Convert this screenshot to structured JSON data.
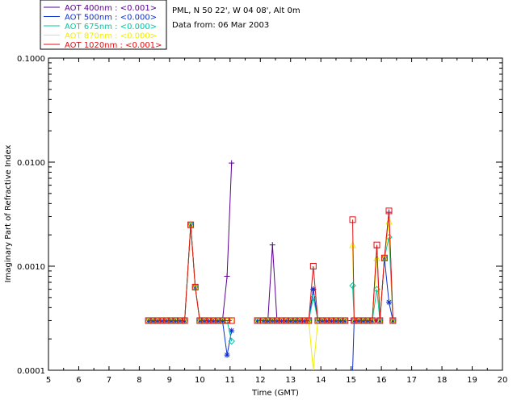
{
  "header": {
    "location": "PML, N 50 22', W 04 08', Alt 0m",
    "date_line": "Data from: 06 Mar 2003"
  },
  "chart_data": {
    "type": "line",
    "xlabel": "Time (GMT)",
    "ylabel": "Imaginary Part of Refractive Index",
    "xlim": [
      5,
      20
    ],
    "ylim": [
      0.0001,
      0.1
    ],
    "yscale": "log",
    "x_ticks": [
      5,
      6,
      7,
      8,
      9,
      10,
      11,
      12,
      13,
      14,
      15,
      16,
      17,
      18,
      19,
      20
    ],
    "x_tick_labels": [
      "5",
      "6",
      "7",
      "8",
      "9",
      "10",
      "11",
      "12",
      "13",
      "14",
      "15",
      "16",
      "17",
      "18",
      "19",
      "20"
    ],
    "y_ticks": [
      0.0001,
      0.001,
      0.01,
      0.1
    ],
    "y_tick_labels": [
      "0.0001",
      "0.0010",
      "0.0100",
      "0.1000"
    ],
    "grid": false,
    "legend_position": "top-left, outside plot",
    "series": [
      {
        "name": "AOT  400nm : <0.001>",
        "color": "#5a0090",
        "marker": "plus",
        "segments": [
          [
            [
              8.3,
              0.0003
            ],
            [
              8.45,
              0.0003
            ],
            [
              8.6,
              0.0003
            ],
            [
              8.75,
              0.0003
            ],
            [
              8.9,
              0.0003
            ],
            [
              9.05,
              0.0003
            ],
            [
              9.2,
              0.0003
            ],
            [
              9.35,
              0.0003
            ],
            [
              9.5,
              0.0003
            ],
            [
              9.7,
              0.0025
            ],
            [
              9.85,
              0.00063
            ],
            [
              10.0,
              0.0003
            ],
            [
              10.15,
              0.0003
            ],
            [
              10.3,
              0.0003
            ],
            [
              10.45,
              0.0003
            ],
            [
              10.6,
              0.0003
            ],
            [
              10.75,
              0.0003
            ],
            [
              10.9,
              0.0008
            ],
            [
              11.05,
              0.0098
            ]
          ],
          [
            [
              11.9,
              0.0003
            ],
            [
              12.1,
              0.0003
            ],
            [
              12.25,
              0.0003
            ],
            [
              12.4,
              0.0016
            ],
            [
              12.55,
              0.0003
            ],
            [
              12.7,
              0.0003
            ],
            [
              12.85,
              0.0003
            ],
            [
              13.0,
              0.0003
            ],
            [
              13.15,
              0.0003
            ],
            [
              13.3,
              0.0003
            ],
            [
              13.45,
              0.0003
            ],
            [
              13.6,
              0.0003
            ],
            [
              13.75,
              0.0006
            ],
            [
              13.9,
              0.0003
            ],
            [
              14.05,
              0.0003
            ],
            [
              14.2,
              0.0003
            ],
            [
              14.35,
              0.0003
            ],
            [
              14.5,
              0.0003
            ],
            [
              14.65,
              0.0003
            ],
            [
              14.8,
              0.0003
            ]
          ],
          [
            [
              15.0,
              0.0003
            ],
            [
              15.1,
              0.0003
            ],
            [
              15.25,
              0.0003
            ],
            [
              15.4,
              0.0003
            ],
            [
              15.55,
              0.0003
            ],
            [
              15.7,
              0.0003
            ],
            [
              15.85,
              0.0015
            ],
            [
              15.95,
              0.0003
            ],
            [
              16.1,
              0.0012
            ],
            [
              16.25,
              0.0033
            ],
            [
              16.38,
              0.0003
            ]
          ]
        ]
      },
      {
        "name": "AOT  500nm : <0.000>",
        "color": "#1030d0",
        "marker": "asterisk",
        "segments": [
          [
            [
              8.3,
              0.0003
            ],
            [
              8.45,
              0.0003
            ],
            [
              8.6,
              0.0003
            ],
            [
              8.75,
              0.0003
            ],
            [
              8.9,
              0.0003
            ],
            [
              9.05,
              0.0003
            ],
            [
              9.2,
              0.0003
            ],
            [
              9.35,
              0.0003
            ],
            [
              9.5,
              0.0003
            ],
            [
              9.7,
              0.0025
            ],
            [
              9.85,
              0.00063
            ],
            [
              10.0,
              0.0003
            ],
            [
              10.15,
              0.0003
            ],
            [
              10.3,
              0.0003
            ],
            [
              10.45,
              0.0003
            ],
            [
              10.6,
              0.0003
            ],
            [
              10.75,
              0.0003
            ],
            [
              10.9,
              0.00014
            ],
            [
              11.05,
              0.00024
            ]
          ],
          [
            [
              11.9,
              0.0003
            ],
            [
              12.1,
              0.0003
            ],
            [
              12.25,
              0.0003
            ],
            [
              12.4,
              0.0003
            ],
            [
              12.55,
              0.0003
            ],
            [
              12.7,
              0.0003
            ],
            [
              12.85,
              0.0003
            ],
            [
              13.0,
              0.0003
            ],
            [
              13.15,
              0.0003
            ],
            [
              13.3,
              0.0003
            ],
            [
              13.45,
              0.0003
            ],
            [
              13.6,
              0.0003
            ],
            [
              13.75,
              0.0006
            ],
            [
              13.9,
              0.0003
            ],
            [
              14.05,
              0.0003
            ],
            [
              14.2,
              0.0003
            ],
            [
              14.35,
              0.0003
            ],
            [
              14.5,
              0.0003
            ],
            [
              14.65,
              0.0003
            ],
            [
              14.8,
              0.0003
            ]
          ],
          [
            [
              15.05,
              0.0001
            ],
            [
              15.1,
              0.0003
            ],
            [
              15.25,
              0.0003
            ],
            [
              15.4,
              0.0003
            ],
            [
              15.55,
              0.0003
            ],
            [
              15.7,
              0.0003
            ],
            [
              15.85,
              0.0003
            ],
            [
              15.95,
              0.0003
            ],
            [
              16.1,
              0.0012
            ],
            [
              16.25,
              0.00045
            ],
            [
              16.38,
              0.0003
            ]
          ]
        ]
      },
      {
        "name": "AOT  675nm : <0.000>",
        "color": "#00c8a0",
        "marker": "diamond",
        "segments": [
          [
            [
              8.3,
              0.0003
            ],
            [
              8.45,
              0.0003
            ],
            [
              8.6,
              0.0003
            ],
            [
              8.75,
              0.0003
            ],
            [
              8.9,
              0.0003
            ],
            [
              9.05,
              0.0003
            ],
            [
              9.2,
              0.0003
            ],
            [
              9.35,
              0.0003
            ],
            [
              9.5,
              0.0003
            ],
            [
              9.7,
              0.0025
            ],
            [
              9.85,
              0.00063
            ],
            [
              10.0,
              0.0003
            ],
            [
              10.15,
              0.0003
            ],
            [
              10.3,
              0.0003
            ],
            [
              10.45,
              0.0003
            ],
            [
              10.6,
              0.0003
            ],
            [
              10.75,
              0.0003
            ],
            [
              10.9,
              0.0003
            ],
            [
              11.05,
              0.00019
            ]
          ],
          [
            [
              11.9,
              0.0003
            ],
            [
              12.1,
              0.0003
            ],
            [
              12.25,
              0.0003
            ],
            [
              12.4,
              0.0003
            ],
            [
              12.55,
              0.0003
            ],
            [
              12.7,
              0.0003
            ],
            [
              12.85,
              0.0003
            ],
            [
              13.0,
              0.0003
            ],
            [
              13.15,
              0.0003
            ],
            [
              13.3,
              0.0003
            ],
            [
              13.45,
              0.0003
            ],
            [
              13.6,
              0.0003
            ],
            [
              13.75,
              0.0005
            ],
            [
              13.9,
              0.0003
            ],
            [
              14.05,
              0.0003
            ],
            [
              14.2,
              0.0003
            ],
            [
              14.35,
              0.0003
            ],
            [
              14.5,
              0.0003
            ],
            [
              14.65,
              0.0003
            ],
            [
              14.8,
              0.0003
            ]
          ],
          [
            [
              15.05,
              0.00065
            ],
            [
              15.1,
              0.0003
            ],
            [
              15.25,
              0.0003
            ],
            [
              15.4,
              0.0003
            ],
            [
              15.55,
              0.0003
            ],
            [
              15.7,
              0.0003
            ],
            [
              15.85,
              0.0006
            ],
            [
              15.95,
              0.0003
            ],
            [
              16.1,
              0.0012
            ],
            [
              16.25,
              0.0019
            ],
            [
              16.38,
              0.0003
            ]
          ]
        ]
      },
      {
        "name": "AOT  870nm : <0.000>",
        "color": "#f0f000",
        "marker": "triangle",
        "segments": [
          [
            [
              8.3,
              0.0003
            ],
            [
              8.45,
              0.0003
            ],
            [
              8.6,
              0.0003
            ],
            [
              8.75,
              0.0003
            ],
            [
              8.9,
              0.0003
            ],
            [
              9.05,
              0.0003
            ],
            [
              9.2,
              0.0003
            ],
            [
              9.35,
              0.0003
            ],
            [
              9.5,
              0.0003
            ],
            [
              9.7,
              0.0025
            ],
            [
              9.85,
              0.00063
            ],
            [
              10.0,
              0.0003
            ],
            [
              10.15,
              0.0003
            ],
            [
              10.3,
              0.0003
            ],
            [
              10.45,
              0.0003
            ],
            [
              10.6,
              0.0003
            ],
            [
              10.75,
              0.0003
            ],
            [
              10.9,
              0.0003
            ],
            [
              11.05,
              0.0003
            ]
          ],
          [
            [
              11.9,
              0.0003
            ],
            [
              12.1,
              0.0003
            ],
            [
              12.25,
              0.0003
            ],
            [
              12.4,
              0.0003
            ],
            [
              12.55,
              0.0003
            ],
            [
              12.7,
              0.0003
            ],
            [
              12.85,
              0.0003
            ],
            [
              13.0,
              0.0003
            ],
            [
              13.15,
              0.0003
            ],
            [
              13.3,
              0.0003
            ],
            [
              13.45,
              0.0003
            ],
            [
              13.6,
              0.0003
            ],
            [
              13.75,
              0.0001
            ],
            [
              13.9,
              0.0003
            ],
            [
              14.05,
              0.0003
            ],
            [
              14.2,
              0.0003
            ],
            [
              14.35,
              0.0003
            ],
            [
              14.5,
              0.0003
            ],
            [
              14.65,
              0.0003
            ],
            [
              14.8,
              0.0003
            ]
          ],
          [
            [
              15.05,
              0.0016
            ],
            [
              15.1,
              0.0003
            ],
            [
              15.25,
              0.0003
            ],
            [
              15.4,
              0.0003
            ],
            [
              15.55,
              0.0003
            ],
            [
              15.7,
              0.0003
            ],
            [
              15.85,
              0.0012
            ],
            [
              15.95,
              0.0003
            ],
            [
              16.1,
              0.0012
            ],
            [
              16.25,
              0.0027
            ],
            [
              16.38,
              0.0003
            ]
          ]
        ]
      },
      {
        "name": "AOT 1020nm : <0.001>",
        "color": "#e01010",
        "marker": "square",
        "segments": [
          [
            [
              8.3,
              0.0003
            ],
            [
              8.45,
              0.0003
            ],
            [
              8.6,
              0.0003
            ],
            [
              8.75,
              0.0003
            ],
            [
              8.9,
              0.0003
            ],
            [
              9.05,
              0.0003
            ],
            [
              9.2,
              0.0003
            ],
            [
              9.35,
              0.0003
            ],
            [
              9.5,
              0.0003
            ],
            [
              9.7,
              0.0025
            ],
            [
              9.85,
              0.00063
            ],
            [
              10.0,
              0.0003
            ],
            [
              10.15,
              0.0003
            ],
            [
              10.3,
              0.0003
            ],
            [
              10.45,
              0.0003
            ],
            [
              10.6,
              0.0003
            ],
            [
              10.75,
              0.0003
            ],
            [
              10.9,
              0.0003
            ],
            [
              11.05,
              0.0003
            ]
          ],
          [
            [
              11.9,
              0.0003
            ],
            [
              12.1,
              0.0003
            ],
            [
              12.25,
              0.0003
            ],
            [
              12.4,
              0.0003
            ],
            [
              12.55,
              0.0003
            ],
            [
              12.7,
              0.0003
            ],
            [
              12.85,
              0.0003
            ],
            [
              13.0,
              0.0003
            ],
            [
              13.15,
              0.0003
            ],
            [
              13.3,
              0.0003
            ],
            [
              13.45,
              0.0003
            ],
            [
              13.6,
              0.0003
            ],
            [
              13.75,
              0.001
            ],
            [
              13.9,
              0.0003
            ],
            [
              14.05,
              0.0003
            ],
            [
              14.2,
              0.0003
            ],
            [
              14.35,
              0.0003
            ],
            [
              14.5,
              0.0003
            ],
            [
              14.65,
              0.0003
            ],
            [
              14.8,
              0.0003
            ]
          ],
          [
            [
              15.05,
              0.0028
            ],
            [
              15.1,
              0.0003
            ],
            [
              15.25,
              0.0003
            ],
            [
              15.4,
              0.0003
            ],
            [
              15.55,
              0.0003
            ],
            [
              15.7,
              0.0003
            ],
            [
              15.85,
              0.0016
            ],
            [
              15.95,
              0.0003
            ],
            [
              16.1,
              0.0012
            ],
            [
              16.25,
              0.0034
            ],
            [
              16.38,
              0.0003
            ]
          ]
        ]
      }
    ]
  }
}
